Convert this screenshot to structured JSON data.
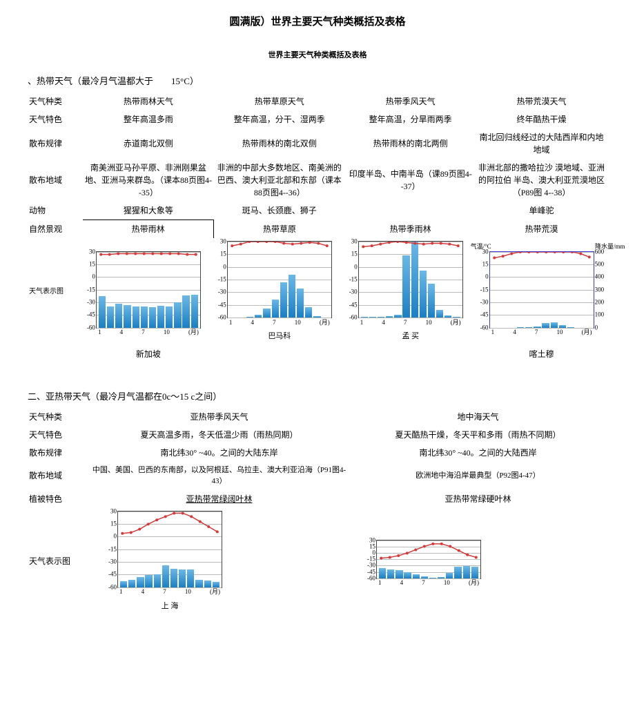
{
  "title_main": "圆满版）世界主要天气种类概括及表格",
  "title_sub": "世界主要天气种类概括及表格",
  "section1": {
    "head": "、热带天气（最冷月气温都大于　　15°C）",
    "rows": {
      "r_type": "天气种类",
      "r_feat": "天气特色",
      "r_dist": "散布规律",
      "r_area": "散布地域",
      "r_anim": "动物",
      "r_veg": "自然景观",
      "r_chart": "天气表示图"
    },
    "cols": [
      {
        "type": "热带雨林天气",
        "feat": "整年高温多雨",
        "dist": "赤道南北双侧",
        "area": "南美洲亚马孙平原、非洲刚果盆地、亚洲马来群岛。（课本88页图4--35）",
        "anim": "猩猩和大象等",
        "veg": "热带雨林",
        "city": "新加坡"
      },
      {
        "type": "热带草原天气",
        "feat": "整年高温，分干、湿两季",
        "dist": "热带雨林的南北双侧",
        "area": "非洲的中部大多数地区、南美洲的巴西、澳大利亚北部和东部（课本88页图4--36）",
        "anim": "斑马、长颈鹿、狮子",
        "veg": "热带草原",
        "city": "巴马科"
      },
      {
        "type": "热带季风天气",
        "feat": "整年高温，分旱雨两季",
        "dist": "热带雨林的南北两侧",
        "area": "印度半岛、中南半岛（课89页图4--37）",
        "anim": "",
        "veg": "热带季雨林",
        "city": "孟 买"
      },
      {
        "type": "热带荒漠天气",
        "feat": "终年酷热干燥",
        "dist": "南北回归线经过的大陆西岸和内地地域",
        "area": "非洲北部的撒哈拉沙 漠地域、亚洲的阿拉伯 半岛、澳大利亚荒漠地区（P89图 4--38）",
        "anim": "单峰驼",
        "veg": "热带荒漠",
        "city": "喀土穆"
      }
    ]
  },
  "section2": {
    "head": "二、亚热带天气（最冷月气温都在0c～15 c之间）",
    "rows": {
      "r_type": "天气种类",
      "r_feat": "天气特色",
      "r_dist": "散布规律",
      "r_area": "散布地域",
      "r_veg": "植被特色",
      "r_chart": "天气表示图"
    },
    "cols": [
      {
        "type": "亚热带季风天气",
        "feat": "夏天高温多雨，冬天低温少雨（雨热同期）",
        "dist": "南北纬30° ~40。之间的大陆东岸",
        "area": "中国、美国、巴西的东南部，以及阿根廷、乌拉圭、澳大利亚沿海（P91图4-43）",
        "veg": "亚热带常绿阔叶林",
        "city": "上 海"
      },
      {
        "type": "地中海天气",
        "feat": "夏天酷热干燥，冬天平和多雨（雨热不同期）",
        "dist": "南北纬30° ~40。之间的大陆西岸",
        "area": "欧洲地中海沿岸最典型（P92图4-47）",
        "veg": "亚热带常绿硬叶林",
        "city": ""
      }
    ]
  },
  "chart_style": {
    "width": 150,
    "height": 110,
    "y_ticks_temp": [
      30,
      15,
      0,
      -15,
      -30,
      -45,
      -60
    ],
    "temp_min": -60,
    "temp_max": 30,
    "precip_max_mm": 600,
    "x_labels": [
      "1",
      "4",
      "7",
      "10",
      "(月)"
    ],
    "bar_color_top": "#6bb8e6",
    "bar_color_bottom": "#1a7fc4",
    "temp_line_color": "#d43a3a",
    "grid_color": "#bbbbbb",
    "border_color": "#444444",
    "axis_label_left": "气温/°C",
    "axis_label_right": "降水量/mm",
    "right_ticks": [
      "600",
      "500",
      "400",
      "300",
      "200",
      "100",
      "0"
    ]
  },
  "charts": {
    "tropical_rainforest": {
      "temp": [
        27,
        27,
        28,
        28,
        28,
        28,
        28,
        28,
        28,
        28,
        27,
        27
      ],
      "precip": [
        250,
        170,
        190,
        180,
        170,
        170,
        160,
        175,
        170,
        200,
        255,
        260
      ]
    },
    "tropical_savanna": {
      "temp": [
        25,
        27,
        30,
        32,
        33,
        31,
        28,
        27,
        28,
        29,
        28,
        25
      ],
      "precip": [
        0,
        0,
        3,
        20,
        70,
        140,
        280,
        340,
        230,
        80,
        10,
        0
      ]
    },
    "tropical_monsoon": {
      "temp": [
        24,
        25,
        27,
        29,
        30,
        29,
        28,
        27,
        28,
        28,
        27,
        25
      ],
      "precip": [
        5,
        5,
        5,
        10,
        20,
        490,
        610,
        370,
        270,
        60,
        15,
        5
      ]
    },
    "tropical_desert": {
      "temp": [
        23,
        25,
        28,
        32,
        35,
        35,
        33,
        32,
        33,
        32,
        28,
        24
      ],
      "precip": [
        0,
        0,
        0,
        2,
        5,
        8,
        35,
        45,
        20,
        5,
        0,
        0
      ]
    },
    "subtropical_monsoon": {
      "temp": [
        4,
        5,
        9,
        15,
        20,
        24,
        28,
        28,
        24,
        18,
        12,
        6
      ],
      "precip": [
        45,
        60,
        80,
        95,
        100,
        170,
        145,
        140,
        140,
        60,
        50,
        40
      ]
    },
    "mediterranean": {
      "temp": [
        9,
        10,
        12,
        15,
        19,
        23,
        26,
        26,
        23,
        18,
        13,
        10
      ],
      "precip": [
        80,
        70,
        65,
        50,
        30,
        15,
        5,
        10,
        40,
        90,
        95,
        90
      ]
    }
  }
}
